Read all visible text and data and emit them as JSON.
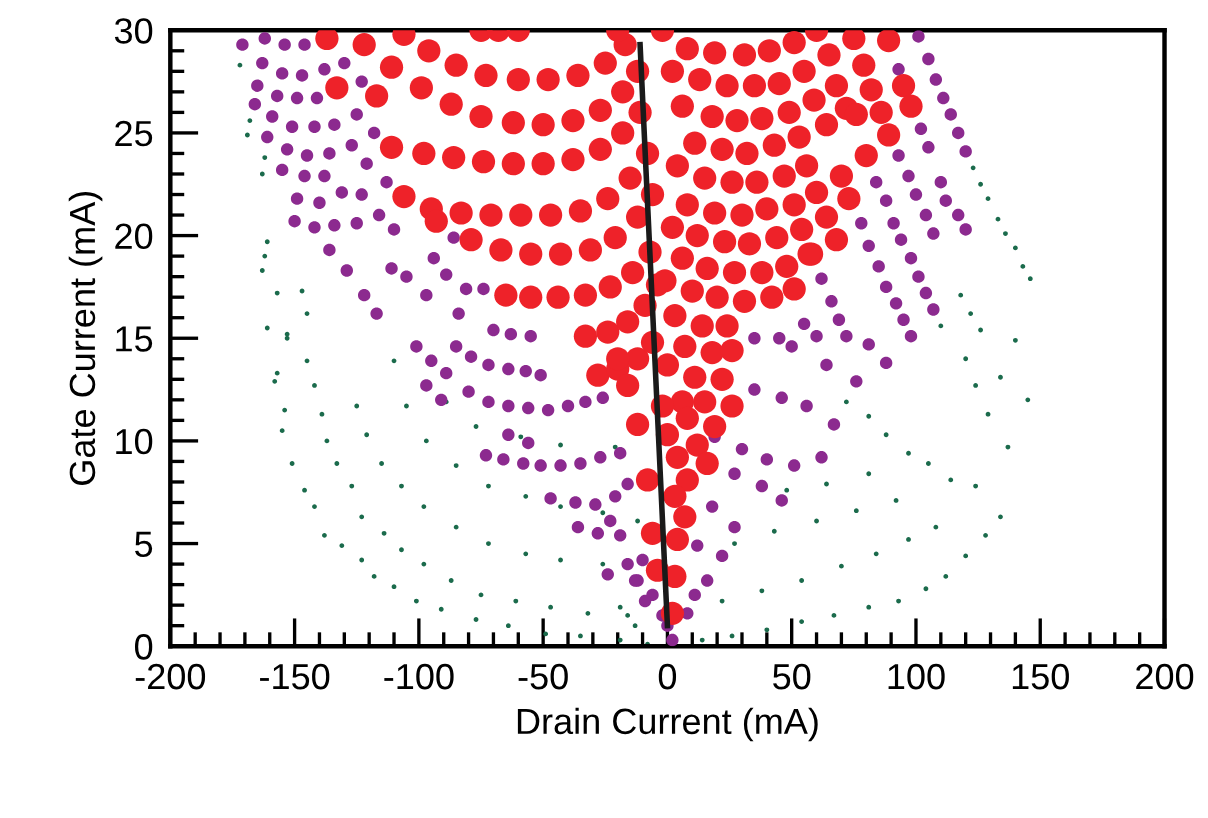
{
  "chart_data": {
    "type": "scatter",
    "xlabel": "Drain Current (mA)",
    "ylabel": "Gate Current (mA)",
    "xlim": [
      -200,
      200
    ],
    "ylim": [
      0,
      30
    ],
    "xticks": [
      -200,
      -150,
      -100,
      -50,
      0,
      50,
      100,
      150,
      200
    ],
    "yticks": [
      0,
      5,
      10,
      15,
      20,
      25,
      30
    ],
    "grid": false,
    "series": [
      {
        "marker": "circle",
        "color": "#1b6b4c",
        "x": [
          -172,
          -168,
          -169,
          -162,
          -163,
          -161,
          -162,
          -163,
          -157,
          -161,
          -153,
          -147,
          -145,
          -153,
          -157,
          -158,
          -154,
          -155,
          -151,
          -146,
          -142,
          -138,
          -131,
          -123,
          -118,
          -110,
          -101,
          -91,
          -77,
          -64,
          -49,
          -35,
          -19,
          -8,
          -145,
          -142,
          -139,
          -137,
          -133,
          -127,
          -123,
          -114,
          -107,
          -98,
          -87,
          -75,
          -61,
          -47,
          -32,
          -16,
          -125,
          -121,
          -115,
          -107,
          -98,
          -85,
          -72,
          -57,
          -43,
          -26,
          -110,
          -105,
          -97,
          -85,
          -72,
          -57,
          -43,
          -26,
          -12,
          -89,
          -77,
          -59,
          -43,
          -21,
          123,
          126,
          129,
          133,
          136,
          140,
          143,
          146,
          118,
          122,
          126,
          110,
          145,
          140,
          134,
          137,
          129,
          124,
          120,
          134,
          128,
          120,
          112,
          104,
          93,
          81,
          67,
          54,
          40,
          26,
          14,
          124,
          114,
          105,
          97,
          88,
          81,
          72,
          108,
          97,
          84,
          70,
          54,
          38,
          22,
          92,
          76,
          60,
          43,
          27,
          81,
          64,
          48,
          -13,
          -19
        ],
        "values": [
          28.3,
          25.6,
          24.9,
          23.8,
          23.0,
          19.7,
          19.0,
          18.3,
          17.2,
          15.5,
          15.2,
          17.3,
          16.2,
          15.0,
          13.3,
          12.9,
          11.5,
          10.5,
          8.9,
          7.6,
          6.8,
          5.4,
          4.9,
          4.2,
          3.4,
          2.9,
          2.2,
          1.8,
          1.3,
          1.0,
          0.6,
          0.5,
          0.3,
          0.1,
          13.9,
          12.7,
          11.3,
          10.0,
          8.9,
          7.8,
          6.3,
          5.5,
          4.7,
          4.0,
          3.2,
          2.5,
          2.2,
          1.9,
          1.6,
          1.5,
          11.7,
          10.3,
          8.9,
          7.8,
          6.8,
          5.8,
          5.0,
          4.5,
          4.2,
          4.0,
          13.9,
          11.7,
          10.0,
          8.8,
          7.8,
          7.3,
          6.8,
          6.5,
          6.1,
          11.9,
          10.7,
          10.2,
          9.8,
          9.7,
          23.3,
          22.5,
          21.8,
          20.8,
          20.1,
          19.4,
          18.5,
          17.9,
          17.1,
          16.2,
          15.4,
          15.6,
          12.0,
          14.9,
          13.1,
          9.7,
          11.3,
          12.7,
          14.0,
          6.3,
          5.4,
          4.4,
          3.4,
          2.8,
          2.2,
          1.9,
          1.5,
          1.2,
          0.8,
          0.5,
          0.3,
          7.8,
          8.1,
          8.9,
          9.4,
          10.3,
          11.2,
          11.9,
          5.8,
          5.2,
          4.5,
          3.9,
          3.2,
          2.7,
          2.2,
          7.1,
          6.6,
          6.1,
          5.6,
          5.0,
          8.4,
          7.9,
          7.6,
          1.0,
          1.9
        ]
      },
      {
        "marker": "circle",
        "color": "#8c2a8f",
        "x": [
          -171,
          -162,
          -154,
          -146,
          -163,
          -155,
          -147,
          -138,
          -130,
          -165,
          -166,
          -157,
          -149,
          -141,
          -123,
          -159,
          -151,
          -142,
          -134,
          -125,
          -118,
          -161,
          -153,
          -145,
          -136,
          -127,
          -121,
          -113,
          -155,
          -146,
          -138,
          -131,
          -123,
          -149,
          -140,
          -116,
          -150,
          -142,
          -134,
          -125,
          -110,
          -136,
          -129,
          -122,
          -117,
          -111,
          -105,
          -97,
          -94,
          -86,
          -89,
          -81,
          -74,
          -84,
          -70,
          -63,
          -55,
          -101,
          -95,
          -85,
          -79,
          -72,
          -64,
          -57,
          -51,
          -97,
          -89,
          -80,
          -72,
          -64,
          -56,
          -48,
          -40,
          -33,
          -26,
          -91,
          -73,
          -66,
          -58,
          -51,
          -43,
          -35,
          -27,
          -19,
          -56,
          -64,
          -47,
          -37,
          -29,
          -21,
          -16,
          -36,
          -28,
          -19,
          -16,
          -10,
          -12,
          -6,
          -2,
          2,
          0,
          101,
          105,
          108,
          111,
          114,
          117,
          120,
          93,
          102,
          105,
          93,
          97,
          100,
          104,
          107,
          110,
          112,
          117,
          120,
          84,
          88,
          91,
          94,
          98,
          101,
          104,
          107,
          78,
          81,
          85,
          88,
          92,
          95,
          98,
          62,
          66,
          69,
          72,
          35,
          45,
          55,
          60,
          50,
          64,
          76,
          88,
          81,
          35,
          46,
          56,
          67,
          19,
          30,
          40,
          51,
          62,
          27,
          38,
          46,
          18,
          27,
          12,
          22,
          16,
          11,
          8,
          -23,
          -24,
          -13,
          -9
        ],
        "values": [
          29.3,
          29.6,
          29.3,
          29.3,
          28.4,
          27.9,
          27.8,
          28.1,
          28.4,
          27.3,
          26.4,
          26.8,
          26.7,
          26.7,
          27.5,
          25.8,
          25.3,
          25.3,
          25.4,
          25.9,
          25.0,
          24.8,
          24.2,
          23.9,
          24.0,
          24.4,
          23.5,
          22.6,
          23.2,
          22.9,
          22.9,
          22.1,
          22.0,
          21.8,
          21.6,
          21.0,
          20.7,
          20.4,
          20.5,
          20.6,
          20.3,
          19.3,
          18.3,
          17.1,
          16.2,
          18.4,
          18.0,
          17.1,
          18.9,
          19.9,
          18.1,
          17.4,
          17.4,
          16.2,
          15.4,
          15.2,
          15.1,
          14.6,
          13.9,
          14.6,
          14.1,
          13.7,
          13.5,
          13.4,
          13.2,
          12.7,
          13.3,
          12.4,
          11.9,
          11.7,
          11.6,
          11.5,
          11.7,
          11.9,
          12.1,
          12.0,
          9.3,
          9.1,
          8.9,
          8.8,
          8.8,
          8.9,
          9.2,
          9.4,
          9.9,
          10.3,
          7.2,
          7.0,
          6.9,
          7.3,
          7.9,
          5.8,
          5.5,
          5.4,
          4.0,
          4.2,
          3.2,
          2.5,
          1.5,
          0.3,
          1.0,
          29.7,
          28.6,
          27.6,
          26.7,
          25.9,
          25.0,
          24.1,
          28.1,
          25.2,
          24.3,
          23.9,
          22.9,
          22.0,
          21.0,
          20.1,
          22.6,
          21.7,
          21.0,
          20.3,
          22.6,
          21.7,
          20.6,
          19.8,
          18.9,
          18.0,
          17.2,
          16.4,
          20.6,
          19.5,
          18.5,
          17.5,
          16.7,
          15.9,
          15.1,
          17.9,
          16.8,
          15.9,
          15.1,
          15.0,
          15.0,
          15.7,
          15.1,
          14.6,
          13.7,
          12.9,
          13.8,
          14.7,
          12.5,
          12.1,
          11.7,
          10.8,
          10.2,
          9.6,
          9.1,
          8.8,
          9.2,
          8.4,
          7.8,
          7.1,
          6.8,
          5.8,
          4.9,
          4.4,
          3.2,
          2.5,
          1.6,
          6.1,
          3.5,
          3.2,
          2.2
        ]
      },
      {
        "marker": "circle",
        "color": "#ee2229",
        "x": [
          -106,
          -96,
          -85,
          -73,
          -60,
          -48,
          -36,
          -25,
          -17,
          -122,
          -111,
          -99,
          -87,
          -75,
          -62,
          -50,
          -38,
          -27,
          -18,
          -12,
          -133,
          -117,
          -111,
          -98,
          -86,
          -74,
          -62,
          -50,
          -38,
          -27,
          -18,
          -11,
          -137,
          -106,
          -95,
          -83,
          -71,
          -59,
          -47,
          -35,
          -24,
          -15,
          -8,
          -93,
          -79,
          -67,
          -55,
          -43,
          -31,
          -21,
          -12,
          -6,
          -65,
          -55,
          -44,
          -33,
          -23,
          -14,
          -7,
          -33,
          -24,
          -16,
          -9,
          -4,
          -28,
          -20,
          -12,
          -6,
          -75,
          -68,
          -60,
          -20,
          -2,
          60,
          75,
          89,
          8,
          19,
          31,
          41,
          51,
          65,
          79,
          95,
          98,
          89,
          80,
          73,
          68,
          58,
          51,
          42,
          31,
          24,
          2,
          13,
          24,
          35,
          45,
          55,
          68,
          82,
          6,
          18,
          28,
          38,
          49,
          59,
          72,
          86,
          11,
          22,
          32,
          43,
          53,
          64,
          76,
          4,
          15,
          26,
          36,
          47,
          56,
          70,
          8,
          19,
          30,
          40,
          51,
          60,
          64,
          2,
          12,
          23,
          33,
          44,
          54,
          6,
          16,
          27,
          38,
          48,
          57,
          -1,
          10,
          20,
          3,
          14,
          7,
          18,
          26,
          0,
          11,
          22,
          6,
          15,
          26,
          -2,
          8,
          19,
          0,
          12,
          4,
          16,
          8,
          3,
          7,
          4,
          3,
          2,
          -20,
          -16,
          -12,
          -8,
          -6,
          -4
        ],
        "values": [
          29.8,
          29.0,
          28.3,
          27.8,
          27.6,
          27.6,
          27.8,
          28.4,
          29.3,
          29.3,
          28.2,
          27.2,
          26.4,
          25.8,
          25.5,
          25.4,
          25.6,
          26.1,
          27.0,
          28.0,
          27.2,
          26.8,
          24.3,
          24.0,
          23.8,
          23.6,
          23.5,
          23.5,
          23.7,
          24.2,
          25.0,
          26.0,
          29.6,
          21.9,
          21.3,
          21.1,
          21.0,
          21.0,
          21.0,
          21.2,
          21.8,
          22.8,
          24.0,
          20.7,
          19.8,
          19.3,
          19.1,
          19.1,
          19.3,
          19.9,
          20.9,
          22.0,
          17.1,
          17.0,
          17.0,
          17.1,
          17.5,
          18.2,
          19.2,
          15.1,
          15.3,
          15.8,
          16.6,
          17.6,
          13.2,
          13.5,
          14.0,
          14.8,
          30.0,
          30.0,
          30.0,
          30.0,
          30.0,
          30.0,
          29.6,
          29.5,
          29.1,
          28.9,
          28.8,
          29.0,
          29.4,
          28.8,
          28.3,
          27.3,
          26.3,
          24.9,
          23.9,
          21.8,
          19.8,
          19.1,
          17.4,
          17.0,
          16.8,
          15.6,
          28.0,
          27.6,
          27.3,
          27.3,
          27.4,
          28.0,
          27.3,
          27.1,
          26.3,
          25.8,
          25.6,
          25.7,
          26.0,
          26.6,
          26.2,
          26.0,
          24.5,
          24.2,
          24.0,
          24.4,
          24.8,
          25.4,
          25.9,
          23.4,
          22.8,
          22.6,
          22.6,
          22.9,
          23.4,
          22.9,
          21.5,
          21.1,
          21.0,
          21.3,
          21.5,
          22.1,
          20.9,
          20.4,
          20.0,
          19.7,
          19.6,
          19.9,
          20.3,
          18.9,
          18.4,
          18.2,
          18.2,
          18.5,
          19.1,
          17.8,
          17.3,
          17.0,
          16.1,
          15.6,
          14.6,
          14.3,
          14.4,
          13.7,
          13.1,
          13.0,
          11.9,
          11.9,
          11.7,
          11.7,
          11.1,
          10.7,
          10.3,
          9.8,
          9.2,
          8.9,
          8.1,
          7.3,
          6.3,
          5.2,
          3.4,
          1.6,
          14.0,
          12.7,
          10.8,
          8.1,
          5.5,
          3.7
        ]
      },
      {
        "type": "line",
        "color": "#1a1a1a",
        "x": [
          -11,
          0
        ],
        "values": [
          29.3,
          1.0
        ]
      }
    ]
  }
}
